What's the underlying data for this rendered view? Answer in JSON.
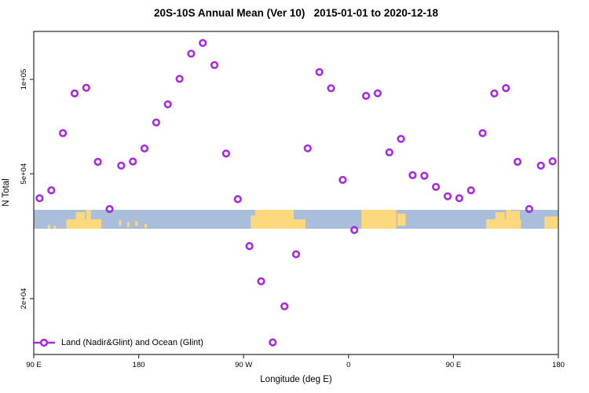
{
  "colors": {
    "accent": "#A62BE2",
    "ocean": "#A8BEDB",
    "land": "#FDD87D",
    "axis": "#3a3a3a",
    "text": "#000000",
    "background": "#ffffff"
  },
  "chart_data": {
    "type": "scatter",
    "title": "20S-10S Annual Mean (Ver 10)   2015-01-01 to 2020-12-18",
    "xlabel": "Longitude (deg E)",
    "ylabel": "N Total",
    "grid": false,
    "legend_position": "bottom-left-inside",
    "x_axis": {
      "note": "axis spans 450 degrees of longitude starting at 90E, wrapping past 360",
      "range_deg": [
        0,
        450
      ],
      "ticks": [
        {
          "pos": 0,
          "label": "90 E"
        },
        {
          "pos": 90,
          "label": "180"
        },
        {
          "pos": 180,
          "label": "90 W"
        },
        {
          "pos": 270,
          "label": "0"
        },
        {
          "pos": 360,
          "label": "90 E"
        },
        {
          "pos": 450,
          "label": "180"
        }
      ]
    },
    "y_axis": {
      "scale": "log",
      "range": [
        13000,
        143000
      ],
      "ticks": [
        {
          "value": 100000,
          "label": "1e+05"
        },
        {
          "value": 50000,
          "label": "5e+04"
        },
        {
          "value": 20000,
          "label": "2e+04"
        }
      ]
    },
    "series": [
      {
        "name": "Land (Nadir&Glint) and Ocean (Glint)",
        "marker": "open-circle",
        "color": "#A62BE2",
        "points": [
          [
            5,
            41800
          ],
          [
            15,
            44300
          ],
          [
            25,
            67400
          ],
          [
            35,
            90200
          ],
          [
            45,
            94000
          ],
          [
            55,
            54600
          ],
          [
            65,
            38600
          ],
          [
            75,
            53100
          ],
          [
            85,
            54700
          ],
          [
            95,
            60200
          ],
          [
            105,
            72900
          ],
          [
            115,
            83300
          ],
          [
            125,
            100400
          ],
          [
            135,
            120800
          ],
          [
            145,
            130600
          ],
          [
            155,
            111100
          ],
          [
            165,
            58000
          ],
          [
            175,
            41500
          ],
          [
            185,
            29400
          ],
          [
            195,
            22700
          ],
          [
            205,
            14500
          ],
          [
            215,
            18900
          ],
          [
            225,
            27700
          ],
          [
            235,
            60300
          ],
          [
            245,
            105500
          ],
          [
            255,
            93700
          ],
          [
            265,
            47800
          ],
          [
            275,
            33100
          ],
          [
            285,
            88600
          ],
          [
            295,
            90300
          ],
          [
            305,
            58500
          ],
          [
            315,
            64600
          ],
          [
            325,
            49500
          ],
          [
            335,
            49300
          ],
          [
            345,
            45400
          ],
          [
            355,
            42400
          ],
          [
            365,
            41800
          ],
          [
            375,
            44300
          ],
          [
            385,
            67400
          ],
          [
            395,
            90200
          ],
          [
            405,
            93800
          ],
          [
            415,
            54600
          ],
          [
            425,
            38600
          ],
          [
            435,
            53100
          ],
          [
            445,
            54800
          ]
        ]
      }
    ],
    "map_band": {
      "description": "20S-10S latitude land/ocean strip",
      "ocean_color": "#A8BEDB",
      "land_color": "#FDD87D",
      "land_segments": [
        [
          12,
          14,
          0.8,
          1
        ],
        [
          17,
          19,
          0.85,
          1
        ],
        [
          28,
          58,
          0.5,
          1
        ],
        [
          36,
          44,
          0.12,
          1
        ],
        [
          45,
          49,
          0,
          1
        ],
        [
          73,
          75,
          0.55,
          0.85
        ],
        [
          80,
          82,
          0.65,
          0.9
        ],
        [
          87,
          89,
          0.6,
          0.85
        ],
        [
          95,
          97,
          0.75,
          0.95
        ],
        [
          186,
          190,
          0.3,
          1
        ],
        [
          190,
          223,
          0,
          1
        ],
        [
          223,
          233,
          0.5,
          1
        ],
        [
          281,
          311,
          0,
          1
        ],
        [
          312,
          319,
          0.2,
          0.85
        ],
        [
          388,
          418,
          0.5,
          1
        ],
        [
          396,
          404,
          0.12,
          1
        ],
        [
          405,
          409,
          0,
          1
        ],
        [
          409,
          417,
          0.05,
          1
        ],
        [
          438,
          450,
          0.35,
          1
        ]
      ]
    }
  }
}
